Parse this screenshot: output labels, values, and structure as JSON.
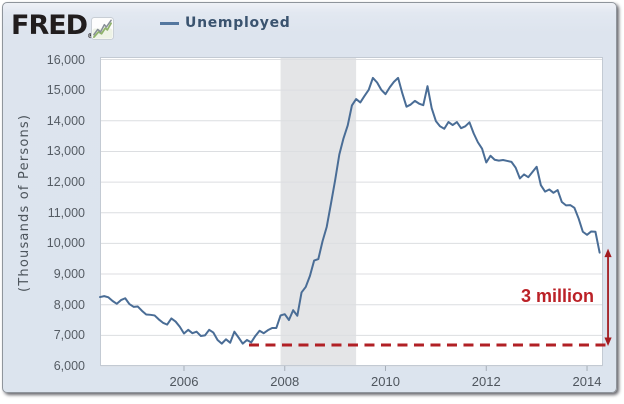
{
  "header": {
    "logo_text": "FRED",
    "logo_registered": "®",
    "legend": {
      "label": "Unemployed",
      "swatch_color": "#54779f"
    }
  },
  "y_axis": {
    "title": "(Thousands of Persons)",
    "tick_labels": [
      "16,000",
      "15,000",
      "14,000",
      "13,000",
      "12,000",
      "11,000",
      "10,000",
      "9,000",
      "8,000",
      "7,000",
      "6,000"
    ],
    "tick_values": [
      16000,
      15000,
      14000,
      13000,
      12000,
      11000,
      10000,
      9000,
      8000,
      7000,
      6000
    ]
  },
  "x_axis": {
    "tick_labels": [
      "2006",
      "2008",
      "2010",
      "2012",
      "2014"
    ],
    "tick_values": [
      2006,
      2008,
      2010,
      2012,
      2014
    ]
  },
  "chart_data": {
    "type": "line",
    "title": "Unemployed",
    "ylabel": "(Thousands of Persons)",
    "xlabel": "",
    "grid": true,
    "legend_position": "top-left",
    "x_range_years": [
      2004.333,
      2014.317
    ],
    "ylim": [
      6000,
      16000
    ],
    "recession_band": {
      "x_start_year": 2007.917,
      "x_end_year": 2009.417,
      "color": "#e4e5e7"
    },
    "series": [
      {
        "name": "Unemployed",
        "color": "#4a6d96",
        "frequency": "monthly",
        "start_year": 2004,
        "start_month": 5,
        "end_year": 2014,
        "end_month": 4,
        "values": [
          8250,
          8280,
          8240,
          8120,
          8030,
          8150,
          8210,
          8020,
          7930,
          7940,
          7800,
          7680,
          7670,
          7650,
          7520,
          7410,
          7350,
          7550,
          7450,
          7280,
          7060,
          7180,
          7070,
          7120,
          6980,
          7000,
          7180,
          7090,
          6850,
          6730,
          6870,
          6760,
          7120,
          6930,
          6730,
          6850,
          6770,
          6980,
          7150,
          7070,
          7170,
          7240,
          7240,
          7650,
          7690,
          7500,
          7820,
          7640,
          8400,
          8580,
          8940,
          9440,
          9490,
          10070,
          10540,
          11290,
          12060,
          12900,
          13430,
          13850,
          14500,
          14710,
          14600,
          14810,
          15010,
          15400,
          15250,
          15010,
          14870,
          15090,
          15270,
          15400,
          14900,
          14460,
          14530,
          14650,
          14560,
          14510,
          15130,
          14410,
          13990,
          13820,
          13740,
          13960,
          13860,
          13960,
          13760,
          13820,
          13950,
          13590,
          13300,
          13090,
          12640,
          12860,
          12730,
          12700,
          12720,
          12690,
          12660,
          12470,
          12120,
          12250,
          12160,
          12330,
          12500,
          11900,
          11690,
          11760,
          11650,
          11740,
          11350,
          11240,
          11250,
          11160,
          10810,
          10380,
          10280,
          10390,
          10380,
          9700
        ]
      }
    ]
  },
  "annotation": {
    "label": "3 million",
    "color": "#bb2127",
    "dashed_line": {
      "value": 6685,
      "x_start_year": 2007.29,
      "x_end_year": 2014.417,
      "color": "#b12025"
    },
    "arrow": {
      "x_year": 2014.417,
      "top_value": 9830,
      "bottom_value": 6685,
      "color": "#a31b20"
    },
    "label_center_year": 2013.38,
    "label_center_value": 8300
  }
}
